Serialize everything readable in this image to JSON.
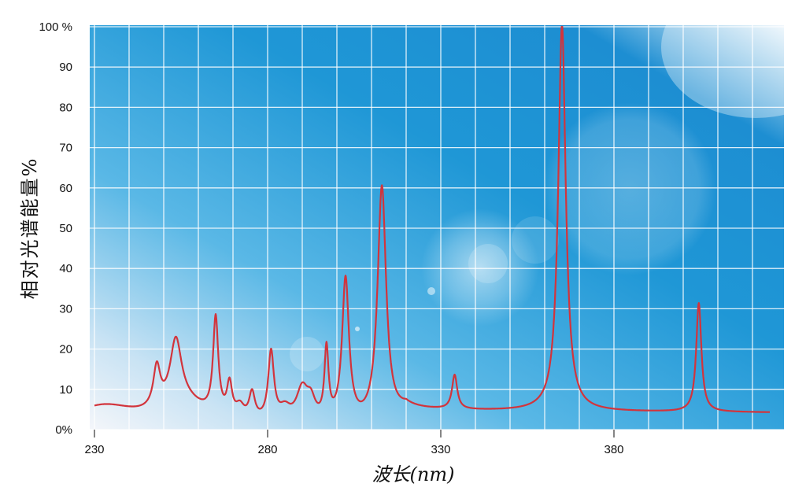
{
  "chart_data": {
    "type": "line",
    "title": "",
    "xlabel": "波长(nm)",
    "ylabel": "相对光谱能量%",
    "xlim": [
      230,
      425
    ],
    "ylim": [
      0,
      100
    ],
    "x_ticks": [
      230,
      280,
      330,
      380
    ],
    "x_tick_labels": [
      "230",
      "280",
      "330",
      "380"
    ],
    "y_ticks": [
      0,
      10,
      20,
      30,
      40,
      50,
      60,
      70,
      80,
      90,
      100
    ],
    "y_tick_labels": [
      "0%",
      "10",
      "20",
      "30",
      "40",
      "50",
      "60",
      "70",
      "80",
      "90",
      "100 %"
    ],
    "grid": true,
    "legend": "none",
    "series": [
      {
        "color": "#d2343c",
        "peaks": [
          {
            "x": 232.5,
            "y": 5.0,
            "w": 12.0
          },
          {
            "x": 248.0,
            "y": 10.0,
            "w": 1.2
          },
          {
            "x": 253.5,
            "y": 16.0,
            "w": 2.0
          },
          {
            "x": 256.0,
            "y": 5.0,
            "w": 8.0
          },
          {
            "x": 265.0,
            "y": 24.0,
            "w": 0.9
          },
          {
            "x": 269.0,
            "y": 8.0,
            "w": 0.9
          },
          {
            "x": 272.0,
            "y": 3.0,
            "w": 1.5
          },
          {
            "x": 275.5,
            "y": 6.5,
            "w": 1.0
          },
          {
            "x": 281.0,
            "y": 17.0,
            "w": 1.0
          },
          {
            "x": 285.0,
            "y": 3.0,
            "w": 2.0
          },
          {
            "x": 290.0,
            "y": 8.0,
            "w": 2.0
          },
          {
            "x": 292.5,
            "y": 4.5,
            "w": 1.5
          },
          {
            "x": 297.0,
            "y": 17.5,
            "w": 0.7
          },
          {
            "x": 302.5,
            "y": 35.5,
            "w": 1.2
          },
          {
            "x": 313.0,
            "y": 59.0,
            "w": 1.5
          },
          {
            "x": 334.0,
            "y": 8.5,
            "w": 0.9
          },
          {
            "x": 365.0,
            "y": 96.0,
            "w": 1.3
          },
          {
            "x": 404.5,
            "y": 27.0,
            "w": 0.9
          }
        ],
        "baseline_points": [
          {
            "x": 230,
            "y": 0.5
          },
          {
            "x": 280,
            "y": 0.5
          },
          {
            "x": 306,
            "y": 0.5
          },
          {
            "x": 315,
            "y": 0.8
          },
          {
            "x": 320,
            "y": 4.5
          },
          {
            "x": 425,
            "y": 4.2
          }
        ]
      }
    ]
  }
}
